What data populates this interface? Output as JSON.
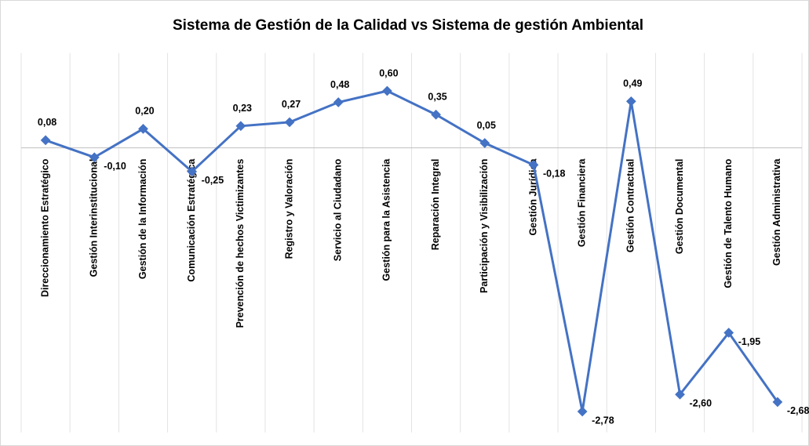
{
  "chart_data": {
    "type": "line",
    "title": "Sistema de Gestión de la Calidad vs Sistema de gestión Ambiental",
    "categories": [
      "Direccionamiento  Estratégico",
      "Gestión Interinstitucional",
      "Gestión de la Información",
      "Comunicación Estratégica",
      "Prevención de hechos Victimizantes",
      "Registro y Valoración",
      "Servicio al Ciudadano",
      "Gestión para la Asistencia",
      "Reparación Integral",
      "Participación y Visibilización",
      "Gestión Jurídica",
      "Gestión Financiera",
      "Gestión Contractual",
      "Gestión Documental",
      "Gestión de Talento Humano",
      "Gestión Administrativa"
    ],
    "series": [
      {
        "color": "#4472c4",
        "values": [
          0.08,
          -0.1,
          0.2,
          -0.25,
          0.23,
          0.27,
          0.48,
          0.6,
          0.35,
          0.05,
          -0.18,
          -2.78,
          0.49,
          -2.6,
          -1.95,
          -2.68
        ],
        "value_labels": [
          "0,08",
          "-0,10",
          "0,20",
          "-0,25",
          "0,23",
          "0,27",
          "0,48",
          "0,60",
          "0,35",
          "0,05",
          "-0,18",
          "-2,78",
          "0,49",
          "-2,60",
          "-1,95",
          "-2,68"
        ]
      }
    ],
    "ylim": [
      -3,
      1
    ],
    "grid": true
  }
}
